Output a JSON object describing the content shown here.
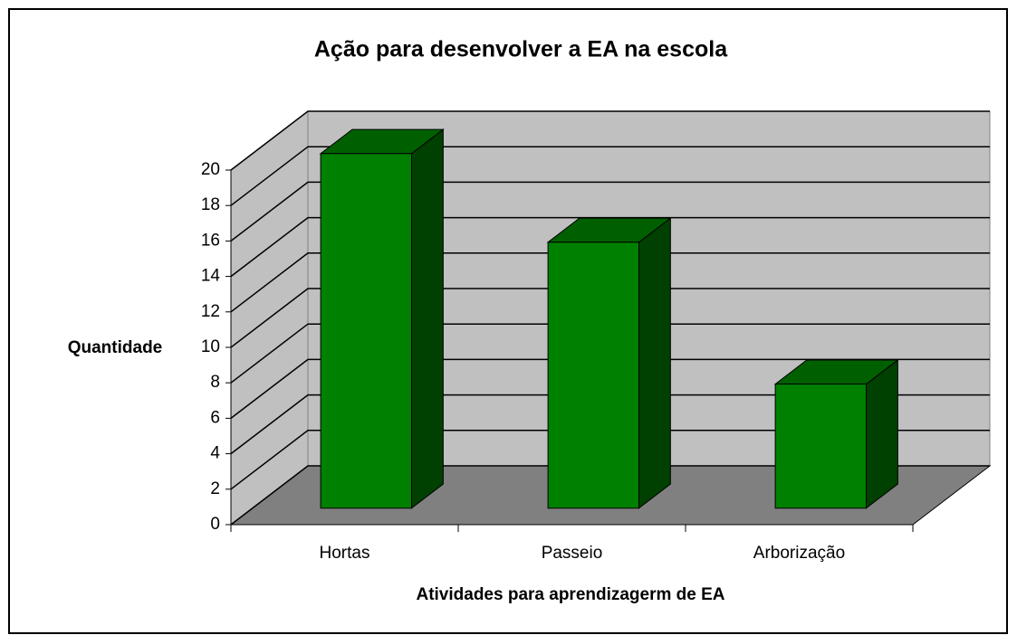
{
  "chart_data": {
    "type": "bar3d",
    "title": "Ação para desenvolver a EA na escola",
    "x_label": "Atividades para aprendizagerm de EA",
    "y_label": "Quantidade",
    "categories": [
      "Hortas",
      "Passeio",
      "Arborização"
    ],
    "values": [
      20,
      15,
      7
    ],
    "color": "#008000",
    "ylim": [
      0,
      20
    ],
    "yticks": [
      0,
      2,
      4,
      6,
      8,
      10,
      12,
      14,
      16,
      18,
      20
    ],
    "grid": true
  }
}
